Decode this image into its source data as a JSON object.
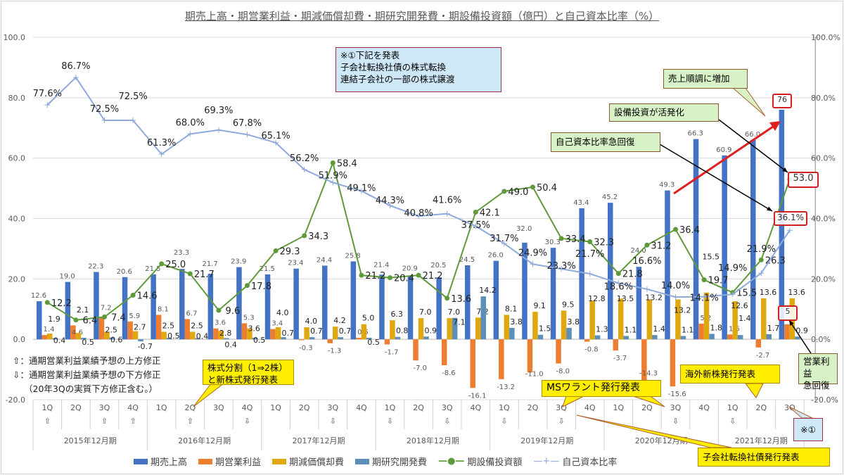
{
  "chart_data": {
    "type": "bar+line",
    "title": "期売上高・期営業利益・期減価償却費・期研究開発費・期設備投資額（億円）と自己資本比率（%）",
    "categories": [
      "1Q",
      "2Q",
      "3Q",
      "4Q",
      "1Q",
      "2Q",
      "3Q",
      "4Q",
      "1Q",
      "2Q",
      "3Q",
      "4Q",
      "1Q",
      "2Q",
      "3Q",
      "4Q",
      "1Q",
      "2Q",
      "3Q",
      "4Q",
      "1Q",
      "2Q",
      "3Q",
      "4Q",
      "1Q",
      "2Q",
      "3Q"
    ],
    "revision_marks": [
      "⇧",
      "",
      "⇧",
      "⇧",
      "",
      "⇧",
      "",
      "⇩",
      "",
      "",
      "⇩",
      "",
      "⇩",
      "",
      "⇩",
      "",
      "⇩",
      "",
      "⇩",
      "",
      "",
      "",
      "⇩",
      "",
      "⇩",
      "",
      ""
    ],
    "fiscal_years": [
      "2015年12月期",
      "2016年12月期",
      "2017年12月期",
      "2018年12月期",
      "2019年12月期",
      "2020年12月期",
      "2021年12月期"
    ],
    "left_axis": {
      "range": [
        -20,
        100
      ],
      "ticks": [
        "100.0",
        "80.0",
        "60.0",
        "40.0",
        "20.0",
        "0.0",
        "-20.0"
      ]
    },
    "right_axis": {
      "range": [
        -20,
        100
      ],
      "ticks": [
        "100.0%",
        "80.0%",
        "60.0%",
        "40.0%",
        "20.0%",
        "0.0%",
        "-20.0%"
      ]
    },
    "grid": true,
    "legend_position": "bottom",
    "series": [
      {
        "name": "期売上高",
        "type": "bar",
        "color": "#4472c4",
        "values": [
          12.6,
          19.0,
          22.3,
          20.6,
          21.5,
          23.3,
          21.7,
          23.9,
          21.5,
          23.4,
          24.4,
          25.8,
          21.4,
          20.9,
          20.5,
          24.5,
          26.0,
          32.0,
          30.3,
          43.4,
          45.2,
          24.0,
          49.3,
          66.3,
          60.9,
          66.0,
          76
        ]
      },
      {
        "name": "期営業利益",
        "type": "bar",
        "color": "#ed7d31",
        "values": [
          1.4,
          4.6,
          7.2,
          5.9,
          8.1,
          6.7,
          3.6,
          5.3,
          3.4,
          -0.3,
          -1.3,
          0.5,
          -1.7,
          -7.0,
          -8.6,
          -16.1,
          -13.2,
          -11.0,
          -8.0,
          -0.8,
          -3.7,
          -14.3,
          -15.6,
          5.2,
          1.6,
          -2.7,
          5
        ]
      },
      {
        "name": "期減価償却費",
        "type": "bar",
        "color": "#e0a810",
        "values": [
          1.9,
          2.1,
          2.5,
          2.7,
          2.5,
          2.5,
          2.8,
          3.6,
          4.0,
          4.0,
          4.2,
          5.0,
          6.3,
          7.0,
          7.0,
          7.2,
          8.1,
          9.1,
          9.5,
          12.8,
          13.5,
          13.2,
          13.2,
          15.5,
          12.6,
          13.6,
          13.6
        ]
      },
      {
        "name": "期研究開発費",
        "type": "bar",
        "color": "#5b8fb9",
        "values": [
          0.4,
          0.5,
          0.6,
          -0.7,
          0.5,
          0.4,
          0.4,
          0.5,
          0.7,
          0.7,
          0.7,
          0.5,
          0.8,
          0.9,
          7.1,
          14.2,
          3.8,
          1.5,
          3.8,
          1.3,
          1.1,
          1.4,
          1.1,
          1.8,
          1.4,
          1.7,
          0.9
        ]
      },
      {
        "name": "期設備投資額",
        "type": "line",
        "axis": "left",
        "color": "#5e9a3a",
        "values": [
          12.2,
          6.4,
          7.4,
          14.6,
          25.0,
          21.7,
          9.6,
          17.8,
          29.3,
          34.3,
          58.4,
          21.2,
          20.4,
          21.2,
          13.6,
          42.1,
          49.0,
          50.4,
          33.4,
          32.3,
          21.8,
          31.2,
          36.4,
          19.7,
          15.5,
          26.3,
          53.0
        ]
      },
      {
        "name": "自己資本比率",
        "type": "line",
        "axis": "right",
        "unit": "%",
        "color": "#8ea9db",
        "values": [
          77.6,
          86.7,
          72.5,
          72.5,
          61.3,
          68.0,
          69.3,
          67.8,
          65.1,
          56.2,
          51.9,
          49.1,
          44.3,
          40.8,
          41.6,
          37.5,
          31.7,
          24.9,
          23.3,
          21.7,
          18.6,
          16.6,
          14.0,
          14.1,
          14.9,
          21.9,
          36.1
        ]
      }
    ]
  },
  "annotations": {
    "announce_box": [
      "※①下記を発表",
      "子会社転換社債の株式転換",
      "連結子会社の一部の株式譲渡"
    ],
    "sales_up": "売上順調に増加",
    "capex_up": "設備投資が活発化",
    "equity_recover": "自己資本比率急回復",
    "op_recover": [
      "営業利益",
      "急回復"
    ],
    "stock_split": [
      "株式分割（1⇒2株）",
      "と新株式発行発表"
    ],
    "ms_warrant": "MSワラント発行発表",
    "overseas_shares": "海外新株発行発表",
    "subsidiary_cb": "子会社転換社債発行発表",
    "note_marker": "※①",
    "highlight_sales": "76",
    "highlight_capex": "53.0",
    "highlight_equity": "36.1%",
    "highlight_op": "5"
  },
  "notes": [
    "⇧：通期営業利益業績予想の上方修正",
    "⇩：通期営業利益業績予想の下方修正",
    "（20年3Qの実質下方修正含む。）"
  ]
}
